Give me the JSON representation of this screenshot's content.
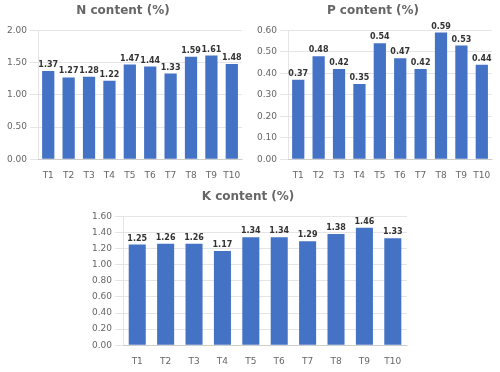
{
  "chart_data": [
    {
      "type": "bar",
      "title": "N content (%)",
      "categories": [
        "T1",
        "T2",
        "T3",
        "T4",
        "T5",
        "T6",
        "T7",
        "T8",
        "T9",
        "T10"
      ],
      "values": [
        1.37,
        1.27,
        1.28,
        1.22,
        1.47,
        1.44,
        1.33,
        1.59,
        1.61,
        1.48
      ],
      "color": "#4472C4",
      "ylim": [
        0,
        2.0
      ],
      "yticks": [
        {
          "value": 0,
          "label": "0.00"
        },
        {
          "value": 0.5,
          "label": "0.50"
        },
        {
          "value": 1.0,
          "label": "1.00"
        },
        {
          "value": 1.5,
          "label": "1.50"
        },
        {
          "value": 2.0,
          "label": "2.00"
        }
      ],
      "grid": true,
      "data_labels": true
    },
    {
      "type": "bar",
      "title": "P content (%)",
      "categories": [
        "T1",
        "T2",
        "T3",
        "T4",
        "T5",
        "T6",
        "T7",
        "T8",
        "T9",
        "T10"
      ],
      "values": [
        0.37,
        0.48,
        0.42,
        0.35,
        0.54,
        0.47,
        0.42,
        0.59,
        0.53,
        0.44
      ],
      "color": "#4472C4",
      "ylim": [
        0,
        0.6
      ],
      "yticks": [
        {
          "value": 0,
          "label": "0.00"
        },
        {
          "value": 0.1,
          "label": "0.10"
        },
        {
          "value": 0.2,
          "label": "0.20"
        },
        {
          "value": 0.3,
          "label": "0.30"
        },
        {
          "value": 0.4,
          "label": "0.40"
        },
        {
          "value": 0.5,
          "label": "0.50"
        },
        {
          "value": 0.6,
          "label": "0.60"
        }
      ],
      "grid": true,
      "data_labels": true
    },
    {
      "type": "bar",
      "title": "K content (%)",
      "categories": [
        "T1",
        "T2",
        "T3",
        "T4",
        "T5",
        "T6",
        "T7",
        "T8",
        "T9",
        "T10"
      ],
      "values": [
        1.25,
        1.26,
        1.26,
        1.17,
        1.34,
        1.34,
        1.29,
        1.38,
        1.46,
        1.33
      ],
      "color": "#4472C4",
      "ylim": [
        0,
        1.6
      ],
      "yticks": [
        {
          "value": 0,
          "label": "0.00"
        },
        {
          "value": 0.2,
          "label": "0.20"
        },
        {
          "value": 0.4,
          "label": "0.40"
        },
        {
          "value": 0.6,
          "label": "0.60"
        },
        {
          "value": 0.8,
          "label": "0.80"
        },
        {
          "value": 1.0,
          "label": "1.00"
        },
        {
          "value": 1.2,
          "label": "1.20"
        },
        {
          "value": 1.4,
          "label": "1.40"
        },
        {
          "value": 1.6,
          "label": "1.60"
        }
      ],
      "grid": true,
      "data_labels": true
    }
  ]
}
